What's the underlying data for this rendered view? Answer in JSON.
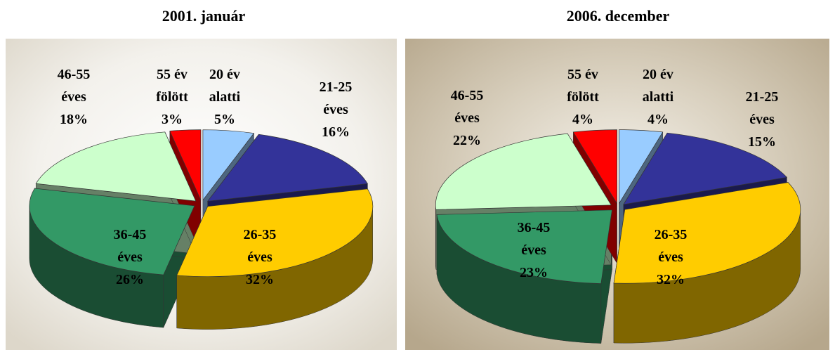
{
  "chart_data": [
    {
      "type": "pie3d",
      "title": "2001. január",
      "categories": [
        "20 év alatti",
        "21-25 éves",
        "26-35 éves",
        "36-45 éves",
        "46-55 éves",
        "55 év fölött"
      ],
      "values": [
        5,
        16,
        32,
        26,
        18,
        3
      ],
      "value_labels": [
        "5%",
        "16%",
        "32%",
        "26%",
        "18%",
        "3%"
      ],
      "colors": [
        "#99ccff",
        "#333399",
        "#ffcc00",
        "#339966",
        "#ccffcc",
        "#ff0000"
      ]
    },
    {
      "type": "pie3d",
      "title": "2006. december",
      "categories": [
        "20 év alatti",
        "21-25 éves",
        "26-35 éves",
        "36-45 éves",
        "46-55 éves",
        "55 év fölött"
      ],
      "values": [
        4,
        15,
        32,
        23,
        22,
        4
      ],
      "value_labels": [
        "4%",
        "15%",
        "32%",
        "23%",
        "22%",
        "4%"
      ],
      "colors": [
        "#99ccff",
        "#333399",
        "#ffcc00",
        "#339966",
        "#ccffcc",
        "#ff0000"
      ]
    }
  ]
}
